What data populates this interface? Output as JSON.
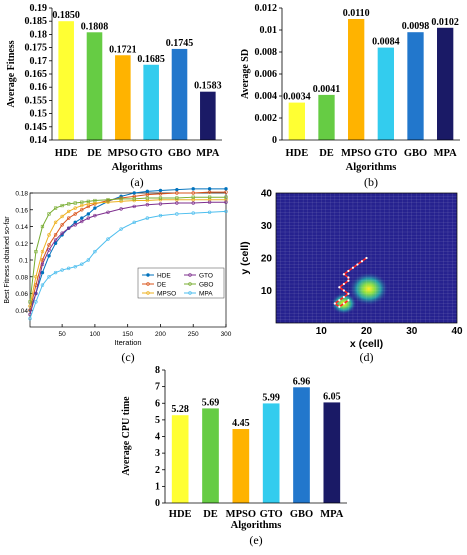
{
  "chart_data": [
    {
      "id": "a",
      "type": "bar",
      "caption": "(a)",
      "categories": [
        "HDE",
        "DE",
        "MPSO",
        "GTO",
        "GBO",
        "MPA"
      ],
      "values": [
        0.185,
        0.1808,
        0.1721,
        0.1685,
        0.1745,
        0.1583
      ],
      "value_labels": [
        "0.1850",
        "0.1808",
        "0.1721",
        "0.1685",
        "0.1745",
        "0.1583"
      ],
      "colors": [
        "#ffff33",
        "#66cc44",
        "#ffb300",
        "#33ccee",
        "#2277cc",
        "#1a1a66"
      ],
      "xlabel": "Algorithms",
      "ylabel": "Average Fitness",
      "ylim": [
        0.14,
        0.19
      ],
      "yticks": [
        "0.14",
        "0.145",
        "0.15",
        "0.155",
        "0.16",
        "0.165",
        "0.17",
        "0.175",
        "0.18",
        "0.185",
        "0.19"
      ]
    },
    {
      "id": "b",
      "type": "bar",
      "caption": "(b)",
      "categories": [
        "HDE",
        "DE",
        "MPSO",
        "GTO",
        "GBO",
        "MPA"
      ],
      "values": [
        0.0034,
        0.0041,
        0.011,
        0.0084,
        0.0098,
        0.0102
      ],
      "value_labels": [
        "0.0034",
        "0.0041",
        "0.0110",
        "0.0084",
        "0.0098",
        "0.0102"
      ],
      "colors": [
        "#ffff33",
        "#66cc44",
        "#ffb300",
        "#33ccee",
        "#2277cc",
        "#1a1a66"
      ],
      "xlabel": "Algorithms",
      "ylabel": "Average SD",
      "ylim": [
        0,
        0.012
      ],
      "yticks": [
        "0",
        "0.002",
        "0.004",
        "0.006",
        "0.008",
        "0.01",
        "0.012"
      ]
    },
    {
      "id": "c",
      "type": "line",
      "caption": "(c)",
      "xlabel": "Iteration",
      "ylabel": "Best Fitness obtained so-far",
      "xlim": [
        1,
        300
      ],
      "ylim": [
        0.02,
        0.18
      ],
      "xticks": [
        "50",
        "100",
        "150",
        "200",
        "250",
        "300"
      ],
      "yticks": [
        "0.04",
        "0.06",
        "0.08",
        "0.1",
        "0.12",
        "0.14",
        "0.16",
        "0.18"
      ],
      "grid": false,
      "legend_position": "center-right",
      "x": [
        1,
        10,
        20,
        30,
        40,
        50,
        60,
        70,
        80,
        90,
        100,
        120,
        140,
        160,
        180,
        200,
        225,
        250,
        275,
        300
      ],
      "series": [
        {
          "name": "HDE",
          "color": "#0072bd",
          "marker": "o",
          "values": [
            0.04,
            0.06,
            0.085,
            0.105,
            0.12,
            0.13,
            0.138,
            0.145,
            0.15,
            0.155,
            0.162,
            0.17,
            0.176,
            0.18,
            0.182,
            0.183,
            0.184,
            0.185,
            0.185,
            0.185
          ]
        },
        {
          "name": "DE",
          "color": "#d95319",
          "marker": "+",
          "values": [
            0.04,
            0.07,
            0.1,
            0.118,
            0.13,
            0.142,
            0.15,
            0.155,
            0.16,
            0.164,
            0.167,
            0.171,
            0.174,
            0.176,
            0.178,
            0.179,
            0.18,
            0.18,
            0.181,
            0.181
          ]
        },
        {
          "name": "MPSO",
          "color": "#edb120",
          "marker": "*",
          "values": [
            0.045,
            0.08,
            0.11,
            0.13,
            0.145,
            0.152,
            0.158,
            0.162,
            0.165,
            0.167,
            0.168,
            0.169,
            0.17,
            0.171,
            0.171,
            0.172,
            0.172,
            0.172,
            0.172,
            0.172
          ]
        },
        {
          "name": "GTO",
          "color": "#7e2f8e",
          "marker": "x",
          "values": [
            0.035,
            0.06,
            0.095,
            0.112,
            0.124,
            0.132,
            0.138,
            0.142,
            0.146,
            0.15,
            0.153,
            0.157,
            0.161,
            0.164,
            0.166,
            0.167,
            0.168,
            0.168,
            0.169,
            0.169
          ]
        },
        {
          "name": "GBO",
          "color": "#77ac30",
          "marker": "s",
          "values": [
            0.05,
            0.11,
            0.14,
            0.155,
            0.162,
            0.165,
            0.167,
            0.168,
            0.169,
            0.17,
            0.171,
            0.172,
            0.173,
            0.173,
            0.174,
            0.174,
            0.174,
            0.175,
            0.175,
            0.175
          ]
        },
        {
          "name": "MPA",
          "color": "#4dbeee",
          "marker": "*",
          "values": [
            0.03,
            0.05,
            0.07,
            0.08,
            0.085,
            0.088,
            0.09,
            0.092,
            0.095,
            0.1,
            0.11,
            0.125,
            0.137,
            0.145,
            0.15,
            0.153,
            0.155,
            0.156,
            0.157,
            0.158
          ]
        }
      ]
    },
    {
      "id": "d",
      "type": "heatmap",
      "caption": "(d)",
      "xlabel": "x (cell)",
      "ylabel": "y (cell)",
      "xlim": [
        0,
        40
      ],
      "ylim": [
        0,
        40
      ],
      "xticks": [
        "10",
        "20",
        "30",
        "40"
      ],
      "yticks": [
        "10",
        "20",
        "30",
        "40"
      ],
      "grid": true,
      "background_color": "#26228f",
      "path": [
        [
          20,
          20
        ],
        [
          19,
          19
        ],
        [
          18,
          18
        ],
        [
          17,
          17
        ],
        [
          16,
          16
        ],
        [
          15,
          15
        ],
        [
          16,
          14
        ],
        [
          16,
          13
        ],
        [
          15,
          12
        ],
        [
          14,
          11
        ],
        [
          15,
          10
        ],
        [
          16,
          9
        ],
        [
          15,
          8
        ],
        [
          14,
          7
        ],
        [
          13,
          6
        ],
        [
          14,
          5
        ],
        [
          15,
          6
        ],
        [
          16,
          7
        ]
      ],
      "path_color": "#ff2222"
    },
    {
      "id": "e",
      "type": "bar",
      "caption": "(e)",
      "categories": [
        "HDE",
        "DE",
        "MPSO",
        "GTO",
        "GBO",
        "MPA"
      ],
      "values": [
        5.28,
        5.69,
        4.45,
        5.99,
        6.96,
        6.05
      ],
      "value_labels": [
        "5.28",
        "5.69",
        "4.45",
        "5.99",
        "6.96",
        "6.05"
      ],
      "colors": [
        "#ffff33",
        "#66cc44",
        "#ffb300",
        "#33ccee",
        "#2277cc",
        "#1a1a66"
      ],
      "xlabel": "Algorithms",
      "ylabel": "Average CPU time",
      "ylim": [
        0,
        8
      ],
      "yticks": [
        "0",
        "1",
        "2",
        "3",
        "4",
        "5",
        "6",
        "7",
        "8"
      ]
    }
  ]
}
